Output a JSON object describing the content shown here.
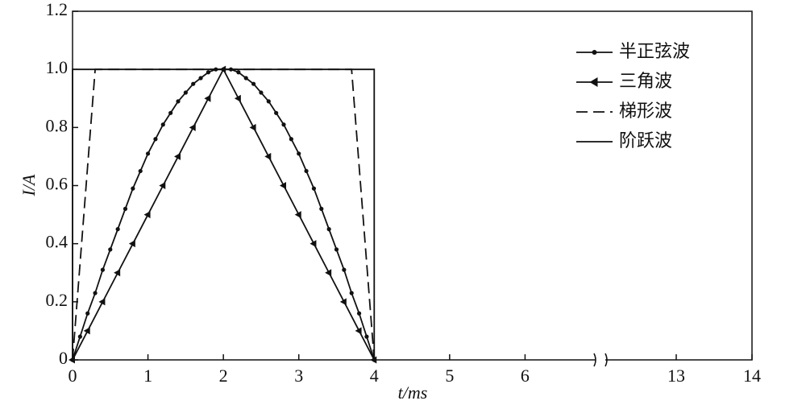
{
  "chart_data": {
    "type": "line",
    "xlabel": "t/ms",
    "ylabel": "I/A",
    "xlim": [
      0,
      14
    ],
    "x_break": [
      7,
      12
    ],
    "xticks": [
      0,
      1,
      2,
      3,
      4,
      5,
      6,
      13,
      14
    ],
    "ylim": [
      0,
      1.2
    ],
    "yticks": [
      0,
      0.2,
      0.4,
      0.6,
      0.8,
      {
        "value": 1,
        "label": "1.0"
      },
      1.2
    ],
    "legend": "upper right",
    "series": [
      {
        "name": "半正弦波",
        "color": "#111111",
        "style": "solid",
        "marker": "circle",
        "x": [
          0,
          0.1,
          0.2,
          0.3,
          0.4,
          0.5,
          0.6,
          0.7,
          0.8,
          0.9,
          1,
          1.1,
          1.2,
          1.3,
          1.4,
          1.5,
          1.6,
          1.7,
          1.8,
          1.9,
          2,
          2.1,
          2.2,
          2.3,
          2.4,
          2.5,
          2.6,
          2.7,
          2.8,
          2.9,
          3,
          3.1,
          3.2,
          3.3,
          3.4,
          3.5,
          3.6,
          3.7,
          3.8,
          3.9,
          4
        ],
        "values": [
          0,
          0.08,
          0.16,
          0.23,
          0.31,
          0.38,
          0.45,
          0.52,
          0.59,
          0.65,
          0.71,
          0.76,
          0.81,
          0.85,
          0.89,
          0.92,
          0.95,
          0.97,
          0.99,
          1,
          1,
          1,
          0.99,
          0.97,
          0.95,
          0.92,
          0.89,
          0.85,
          0.81,
          0.76,
          0.71,
          0.65,
          0.59,
          0.52,
          0.45,
          0.38,
          0.31,
          0.23,
          0.16,
          0.08,
          0
        ]
      },
      {
        "name": "三角波",
        "color": "#111111",
        "style": "solid",
        "marker": "triangle",
        "x": [
          0,
          0.2,
          0.4,
          0.6,
          0.8,
          1,
          1.2,
          1.4,
          1.6,
          1.8,
          2,
          2.2,
          2.4,
          2.6,
          2.8,
          3,
          3.2,
          3.4,
          3.6,
          3.8,
          4
        ],
        "values": [
          0,
          0.1,
          0.2,
          0.3,
          0.4,
          0.5,
          0.6,
          0.7,
          0.8,
          0.9,
          1,
          0.9,
          0.8,
          0.7,
          0.6,
          0.5,
          0.4,
          0.3,
          0.2,
          0.1,
          0
        ]
      },
      {
        "name": "梯形波",
        "color": "#111111",
        "style": "dashed",
        "marker": "none",
        "x": [
          0,
          0.3,
          3.7,
          4
        ],
        "values": [
          0,
          1,
          1,
          0
        ]
      },
      {
        "name": "阶跃波",
        "color": "#111111",
        "style": "solid",
        "marker": "none",
        "x": [
          0,
          0,
          4,
          4
        ],
        "values": [
          0,
          1,
          1,
          0
        ]
      }
    ]
  }
}
